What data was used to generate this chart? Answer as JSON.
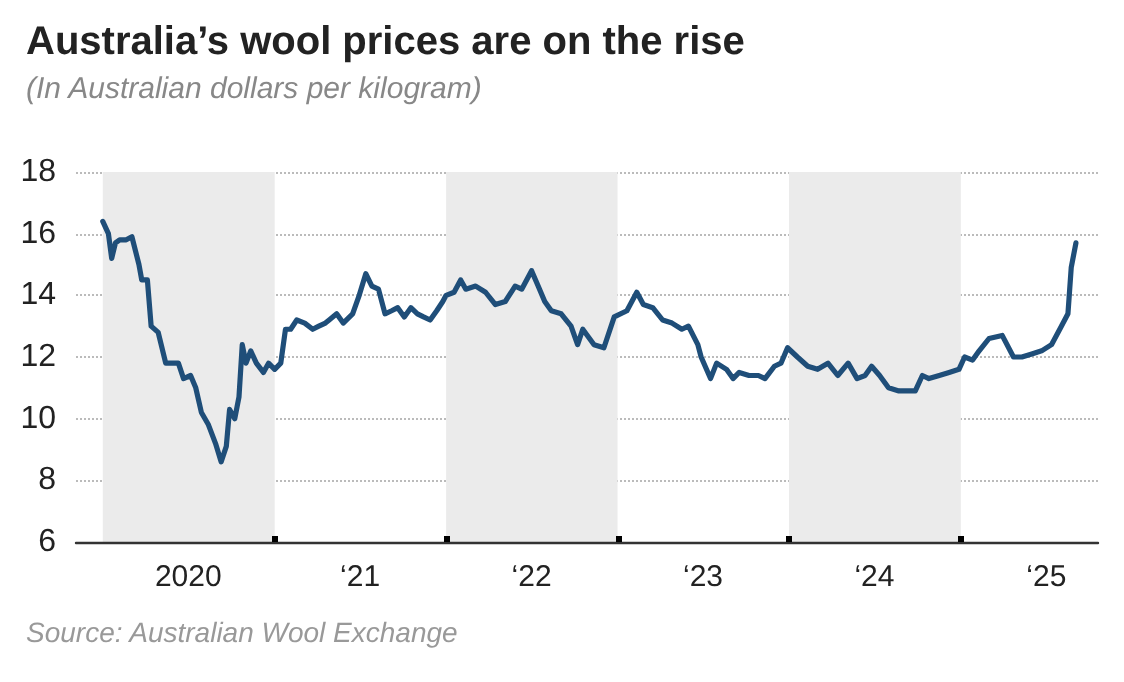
{
  "chart_data": {
    "type": "line",
    "title": "Australia’s wool prices are on the rise",
    "subtitle": "(In Australian dollars per kilogram)",
    "annotations": [
      "Source: Australian Wool Exchange"
    ],
    "x": [
      "2020-01-01",
      "2020-01-13",
      "2020-01-20",
      "2020-01-28",
      "2020-02-06",
      "2020-02-20",
      "2020-03-03",
      "2020-03-18",
      "2020-03-24",
      "2020-04-05",
      "2020-04-13",
      "2020-04-28",
      "2020-05-14",
      "2020-05-29",
      "2020-06-10",
      "2020-06-21",
      "2020-07-06",
      "2020-07-17",
      "2020-07-29",
      "2020-08-13",
      "2020-08-28",
      "2020-09-09",
      "2020-09-20",
      "2020-09-27",
      "2020-10-08",
      "2020-10-17",
      "2020-10-24",
      "2020-11-01",
      "2020-11-11",
      "2020-11-23",
      "2020-12-08",
      "2020-12-19",
      "2021-01-01",
      "2021-01-14",
      "2021-01-24",
      "2021-02-04",
      "2021-02-17",
      "2021-03-06",
      "2021-03-23",
      "2021-04-05",
      "2021-04-19",
      "2021-04-27",
      "2021-05-13",
      "2021-05-27",
      "2021-06-16",
      "2021-06-30",
      "2021-07-14",
      "2021-07-27",
      "2021-08-10",
      "2021-08-24",
      "2021-09-07",
      "2021-09-20",
      "2021-10-04",
      "2021-10-18",
      "2021-11-01",
      "2021-11-14",
      "2021-11-28",
      "2021-12-12",
      "2021-12-25",
      "2022-01-01",
      "2022-01-18",
      "2022-02-01",
      "2022-02-12",
      "2022-03-05",
      "2022-03-26",
      "2022-04-16",
      "2022-05-07",
      "2022-05-28",
      "2022-06-11",
      "2022-07-02",
      "2022-07-16",
      "2022-07-30",
      "2022-08-13",
      "2022-09-03",
      "2022-09-24",
      "2022-10-08",
      "2022-10-19",
      "2022-11-12",
      "2022-12-03",
      "2022-12-25",
      "2023-01-21",
      "2023-02-11",
      "2023-02-25",
      "2023-03-17",
      "2023-04-07",
      "2023-04-27",
      "2023-05-18",
      "2023-06-01",
      "2023-06-21",
      "2023-06-28",
      "2023-07-18",
      "2023-07-31",
      "2023-08-21",
      "2023-09-04",
      "2023-09-17",
      "2023-10-08",
      "2023-10-28",
      "2023-11-11",
      "2023-12-01",
      "2023-12-15",
      "2023-12-29",
      "2024-01-19",
      "2024-02-10",
      "2024-03-02",
      "2024-03-24",
      "2024-04-14",
      "2024-05-06",
      "2024-05-25",
      "2024-06-11",
      "2024-06-25",
      "2024-07-12",
      "2024-07-31",
      "2024-08-22",
      "2024-09-08",
      "2024-09-26",
      "2024-10-11",
      "2024-10-25",
      "2024-11-16",
      "2024-12-07",
      "2024-12-28",
      "2025-01-09",
      "2025-01-26",
      "2025-02-09",
      "2025-03-02",
      "2025-03-30",
      "2025-04-23",
      "2025-05-11",
      "2025-06-01",
      "2025-06-22",
      "2025-07-13",
      "2025-08-03",
      "2025-08-17",
      "2025-08-24",
      "2025-09-03"
    ],
    "series": [
      {
        "color": "#1f4e79",
        "values": [
          16.4,
          16.0,
          15.2,
          15.7,
          15.8,
          15.8,
          15.9,
          15.0,
          14.5,
          14.5,
          13.0,
          12.8,
          11.8,
          11.8,
          11.8,
          11.3,
          11.4,
          11.0,
          10.2,
          9.8,
          9.2,
          8.6,
          9.1,
          10.3,
          10.0,
          10.7,
          12.4,
          11.8,
          12.2,
          11.8,
          11.5,
          11.8,
          11.6,
          11.8,
          12.9,
          12.9,
          13.2,
          13.1,
          12.9,
          13.0,
          13.1,
          13.2,
          13.4,
          13.1,
          13.4,
          14.0,
          14.7,
          14.3,
          14.2,
          13.4,
          13.5,
          13.6,
          13.3,
          13.6,
          13.4,
          13.3,
          13.2,
          13.5,
          13.8,
          14.0,
          14.1,
          14.5,
          14.2,
          14.3,
          14.1,
          13.7,
          13.8,
          14.3,
          14.2,
          14.8,
          14.3,
          13.8,
          13.5,
          13.4,
          13.0,
          12.4,
          12.9,
          12.4,
          12.3,
          13.3,
          13.5,
          14.1,
          13.7,
          13.6,
          13.2,
          13.1,
          12.9,
          13.0,
          12.4,
          12.0,
          11.3,
          11.8,
          11.6,
          11.3,
          11.5,
          11.4,
          11.4,
          11.3,
          11.7,
          11.8,
          12.3,
          12.0,
          11.7,
          11.6,
          11.8,
          11.4,
          11.8,
          11.3,
          11.4,
          11.7,
          11.4,
          11.0,
          10.9,
          10.9,
          10.9,
          11.4,
          11.3,
          11.4,
          11.5,
          11.6,
          12.0,
          11.9,
          12.2,
          12.6,
          12.7,
          12.0,
          12.0,
          12.1,
          12.2,
          12.4,
          13.0,
          13.4,
          14.9,
          15.7
        ]
      }
    ],
    "xlim": [
      "2019-11-05",
      "2025-10-20"
    ],
    "xticks": [
      {
        "value": "2020-07-01",
        "label": "2020"
      },
      {
        "value": "2021-01-01",
        "label": null
      },
      {
        "value": "2021-07-02",
        "label": "‘21"
      },
      {
        "value": "2022-01-01",
        "label": null
      },
      {
        "value": "2022-07-02",
        "label": "‘22"
      },
      {
        "value": "2023-01-01",
        "label": null
      },
      {
        "value": "2023-07-02",
        "label": "‘23"
      },
      {
        "value": "2024-01-01",
        "label": null
      },
      {
        "value": "2024-07-01",
        "label": "‘24"
      },
      {
        "value": "2025-01-01",
        "label": null
      },
      {
        "value": "2025-07-02",
        "label": "‘25"
      }
    ],
    "ylim": [
      6,
      18
    ],
    "yticks": [
      6,
      8,
      10,
      12,
      14,
      16,
      18
    ],
    "grid": "y",
    "marker": "none",
    "line_style": "solid",
    "bands": [
      {
        "axis": "x",
        "from": "2020-01-01",
        "to": "2021-01-01",
        "color": "#ebebeb"
      },
      {
        "axis": "x",
        "from": "2022-01-01",
        "to": "2023-01-01",
        "color": "#ebebeb"
      },
      {
        "axis": "x",
        "from": "2024-01-01",
        "to": "2025-01-01",
        "color": "#ebebeb"
      }
    ]
  }
}
